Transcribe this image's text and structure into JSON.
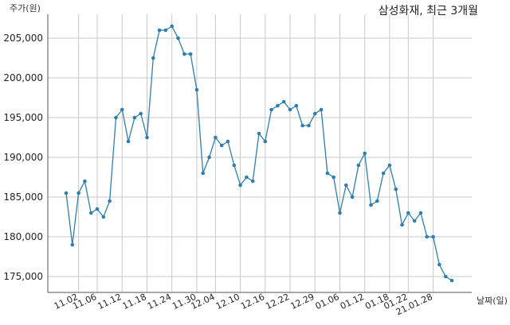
{
  "chart_data": {
    "type": "line",
    "title": "삼성화재, 최근 3개월",
    "ylabel": "주가(원)",
    "xlabel": "날짜(일)",
    "ylim": [
      173000,
      208000
    ],
    "yticks": [
      175000,
      180000,
      185000,
      190000,
      195000,
      200000,
      205000
    ],
    "ytick_labels": [
      "175,000",
      "180,000",
      "185,000",
      "190,000",
      "195,000",
      "200,000",
      "205,000"
    ],
    "xtick_labels": [
      "11.02",
      "11.06",
      "11.12",
      "11.18",
      "11.24",
      "11.30",
      "12.04",
      "12.10",
      "12.16",
      "12.22",
      "12.29",
      "01.06",
      "01.12",
      "01.18",
      "01.22",
      "21.01.28"
    ],
    "xtick_positions": [
      2,
      5,
      9,
      13,
      17,
      21,
      24,
      28,
      32,
      36,
      40,
      44,
      48,
      52,
      55,
      59
    ],
    "grid": true,
    "series": [
      {
        "color": "#2e7fb0",
        "values": [
          185500,
          179000,
          185500,
          187000,
          183000,
          183500,
          182500,
          184500,
          195000,
          196000,
          192000,
          195000,
          195500,
          192500,
          202500,
          206000,
          206000,
          206500,
          205000,
          203000,
          203000,
          198500,
          188000,
          190000,
          192500,
          191500,
          192000,
          189000,
          186500,
          187500,
          187000,
          193000,
          192000,
          196000,
          196500,
          197000,
          196000,
          196500,
          194000,
          194000,
          195500,
          196000,
          188000,
          187500,
          183000,
          186500,
          185000,
          189000,
          190500,
          184000,
          184500,
          188000,
          189000,
          186000,
          181500,
          183000,
          182000,
          183000,
          180000,
          180000,
          176500,
          175000,
          174500
        ]
      }
    ]
  }
}
